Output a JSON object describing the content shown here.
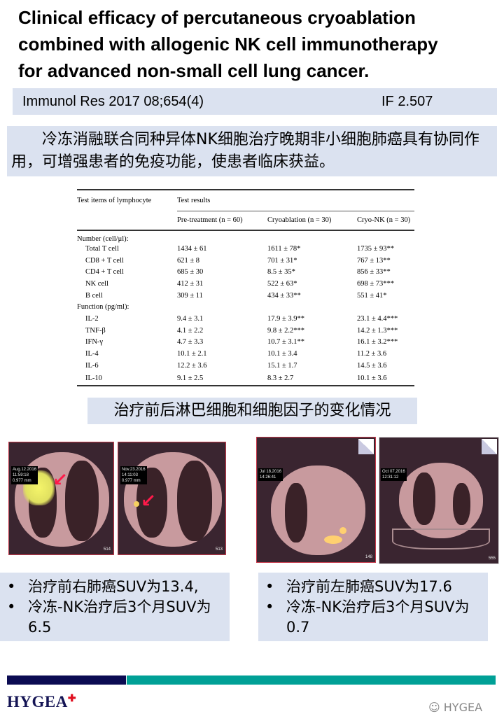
{
  "title": [
    "Clinical efficacy of percutaneous cryoablation",
    "combined with allogenic NK cell immunotherapy",
    "for advanced non-small cell lung cancer."
  ],
  "citation": {
    "journal": "Immunol Res 2017 08;654(4)",
    "impact_factor": "IF 2.507"
  },
  "summary": "冷冻消融联合同种异体NK细胞治疗晚期非小细胞肺癌具有协同作用，可增强患者的免疫功能，使患者临床获益。",
  "table": {
    "header_col1": "Test items of lymphocyte",
    "header_group": "Test results",
    "columns": [
      "Pre-treatment (n = 60)",
      "Cryoablation (n = 30)",
      "Cryo-NK (n = 30)"
    ],
    "sections": [
      {
        "label": "Number (cell/μl):",
        "rows": [
          [
            "Total T cell",
            "1434 ± 61",
            "1611 ± 78*",
            "1735 ± 93**"
          ],
          [
            "CD8 + T cell",
            "621 ± 8",
            "701 ± 31*",
            "767 ± 13**"
          ],
          [
            "CD4 + T cell",
            "685 ± 30",
            "8.5 ± 35*",
            "856 ± 33**"
          ],
          [
            "NK cell",
            "412 ± 31",
            "522 ± 63*",
            "698 ± 73***"
          ],
          [
            "B cell",
            "309 ± 11",
            "434 ± 33**",
            "551 ± 41*"
          ]
        ]
      },
      {
        "label": "Function (pg/ml):",
        "rows": [
          [
            "IL-2",
            "9.4 ± 3.1",
            "17.9 ± 3.9**",
            "23.1 ± 4.4***"
          ],
          [
            "TNF-β",
            "4.1 ± 2.2",
            "9.8 ± 2.2***",
            "14.2 ± 1.3***"
          ],
          [
            "IFN-γ",
            "4.7 ± 3.3",
            "10.7 ± 3.1**",
            "16.1 ± 3.2***"
          ],
          [
            "IL-4",
            "10.1 ± 2.1",
            "10.1 ± 3.4",
            "11.2 ± 3.6"
          ],
          [
            "IL-6",
            "12.2 ± 3.6",
            "15.1 ± 1.7",
            "14.5 ± 3.6"
          ],
          [
            "IL-10",
            "9.1 ± 2.5",
            "8.3 ± 2.7",
            "10.1 ± 3.6"
          ]
        ]
      }
    ]
  },
  "caption": "治疗前后淋巴细胞和细胞因子的变化情况",
  "images": [
    {
      "stamp": [
        "Aug.12.2016",
        "11:59:18",
        "0.977 mm"
      ],
      "corner": "514"
    },
    {
      "stamp": [
        "Nov.23.2016",
        "14:11:03",
        "0.977 mm"
      ],
      "corner": "513"
    },
    {
      "stamp": [
        "Jul 18,2016",
        "14:26:41"
      ],
      "corner": "148"
    },
    {
      "stamp": [
        "Oct 07,2016",
        "12:31:12"
      ],
      "corner": "555"
    }
  ],
  "bullets_left": [
    "治疗前右肺癌SUV为13.4,",
    "冷冻-NK治疗后3个月SUV为6.5"
  ],
  "bullets_right": [
    "治疗前左肺癌SUV为17.6",
    "冷冻-NK治疗后3个月SUV为0.7"
  ],
  "footer": {
    "logo": "HYGEA",
    "watermark": "HYGEA",
    "colors": {
      "navy": "#0b0b52",
      "teal": "#00a096"
    }
  }
}
